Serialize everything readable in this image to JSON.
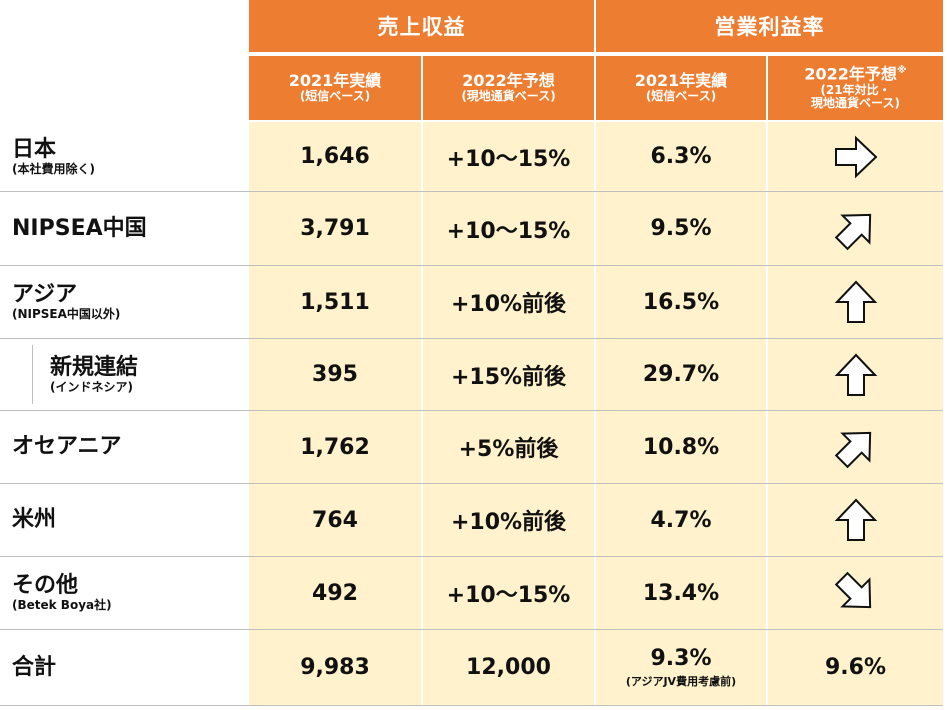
{
  "colors": {
    "header": "#ED7D31",
    "body": "#FFF2CC"
  },
  "header": {
    "revenue": "売上収益",
    "op_margin": "営業利益率",
    "sub": [
      {
        "main": "2021年実績",
        "note": "(短信ベース)"
      },
      {
        "main": "2022年予想",
        "note": "(現地通貨ベース)"
      },
      {
        "main": "2021年実績",
        "note": "(短信ベース)"
      },
      {
        "main": "2022年予想",
        "mark": "※",
        "note1": "(21年対比・",
        "note2": "現地通貨ベース)"
      }
    ]
  },
  "rows": [
    {
      "name": "日本",
      "sub": "(本社費用除く)",
      "actual": "1,646",
      "forecast": "+10〜15%",
      "margin": "6.3%",
      "trend": "right-arrow-icon"
    },
    {
      "name": "NIPSEA中国",
      "sub": "",
      "actual": "3,791",
      "forecast": "+10〜15%",
      "margin": "9.5%",
      "trend": "up-right-arrow-icon"
    },
    {
      "name": "アジア",
      "sub": "(NIPSEA中国以外)",
      "actual": "1,511",
      "forecast": "+10%前後",
      "margin": "16.5%",
      "trend": "up-arrow-icon"
    },
    {
      "name": "新規連結",
      "sub": "(インドネシア)",
      "actual": "395",
      "forecast": "+15%前後",
      "margin": "29.7%",
      "trend": "up-arrow-icon"
    },
    {
      "name": "オセアニア",
      "sub": "",
      "actual": "1,762",
      "forecast": "+5%前後",
      "margin": "10.8%",
      "trend": "up-right-arrow-icon"
    },
    {
      "name": "米州",
      "sub": "",
      "actual": "764",
      "forecast": "+10%前後",
      "margin": "4.7%",
      "trend": "up-arrow-icon"
    },
    {
      "name": "その他",
      "sub": "(Betek Boya社)",
      "actual": "492",
      "forecast": "+10〜15%",
      "margin": "13.4%",
      "trend": "down-right-arrow-icon"
    }
  ],
  "total": {
    "name": "合計",
    "actual": "9,983",
    "forecast": "12,000",
    "margin": "9.3%",
    "margin_note": "(アジアJV費用考慮前)",
    "forecast_margin": "9.6%"
  }
}
